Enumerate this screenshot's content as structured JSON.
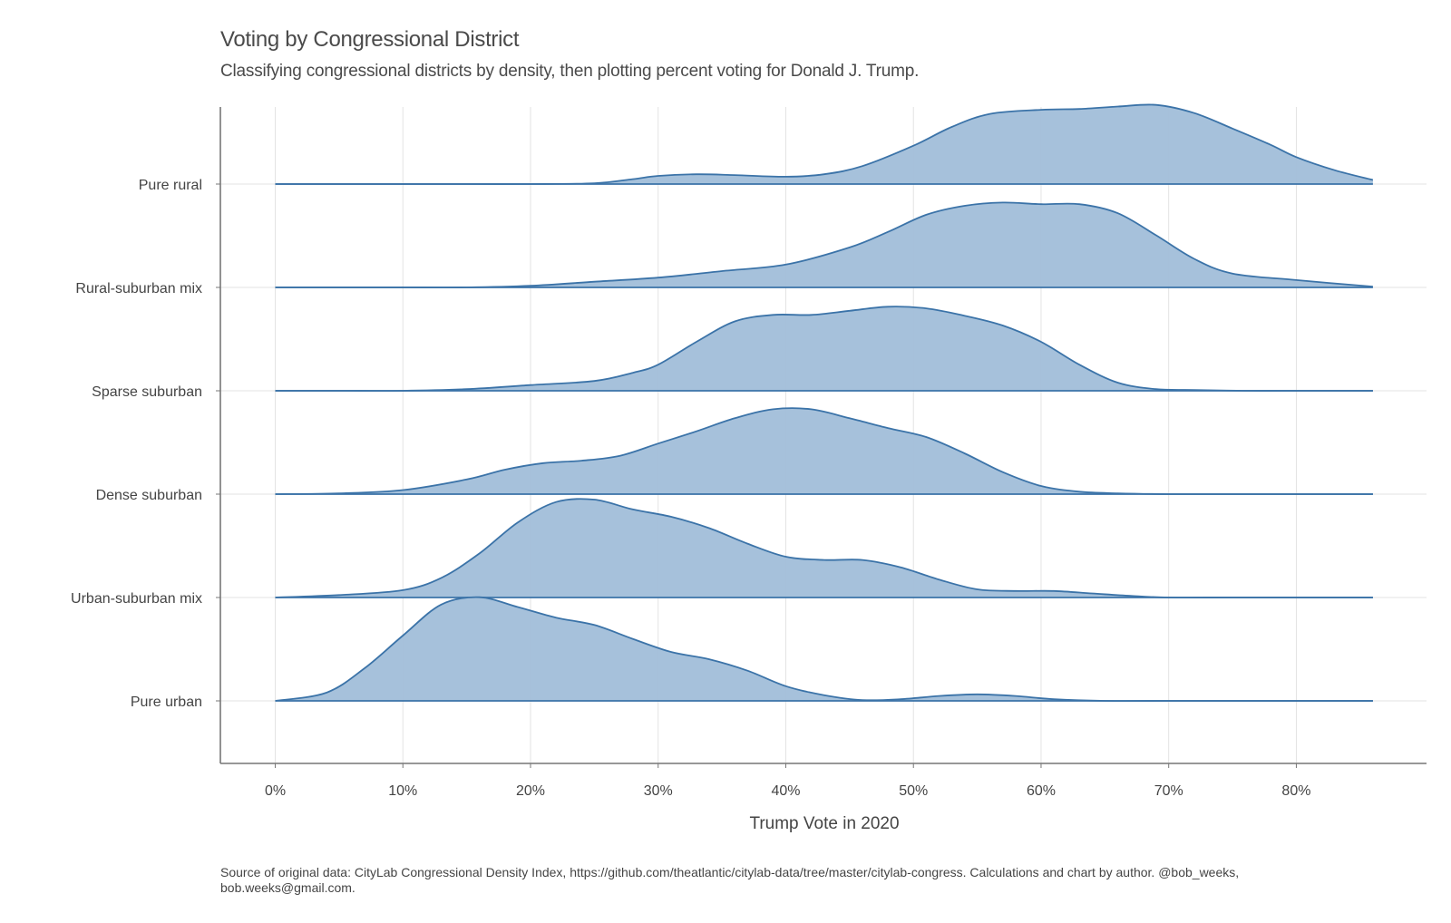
{
  "chart_data": {
    "type": "ridgeline",
    "title": "Voting by Congressional District",
    "subtitle": "Classifying congressional districts by density, then plotting percent voting for Donald J. Trump.",
    "xlabel": "Trump Vote in 2020",
    "ylabel": "",
    "xlim": [
      -4.3,
      90.2
    ],
    "x_ticks": [
      0,
      10,
      20,
      30,
      40,
      50,
      60,
      70,
      80
    ],
    "x_tick_labels": [
      "0%",
      "10%",
      "20%",
      "30%",
      "40%",
      "50%",
      "60%",
      "70%",
      "80%"
    ],
    "grid": true,
    "fill_color": "#a3bfda",
    "line_color": "#3b73a8",
    "categories": [
      "Pure rural",
      "Rural-suburban mix",
      "Sparse suburban",
      "Dense suburban",
      "Urban-suburban mix",
      "Pure urban"
    ],
    "series": [
      {
        "name": "Pure rural",
        "x": [
          0,
          5,
          10,
          15,
          20,
          25,
          28,
          30,
          33,
          36,
          40,
          43,
          46,
          50,
          53,
          56,
          60,
          63,
          66,
          69,
          72,
          75,
          78,
          80,
          83,
          86
        ],
        "density": [
          0,
          0,
          0,
          0,
          0,
          0.01,
          0.06,
          0.1,
          0.12,
          0.11,
          0.09,
          0.12,
          0.22,
          0.47,
          0.7,
          0.86,
          0.91,
          0.92,
          0.95,
          0.97,
          0.87,
          0.68,
          0.48,
          0.33,
          0.17,
          0.05
        ]
      },
      {
        "name": "Rural-suburban mix",
        "x": [
          0,
          5,
          10,
          15,
          20,
          25,
          30,
          35,
          40,
          45,
          48,
          51,
          54,
          57,
          60,
          63,
          66,
          69,
          72,
          75,
          80,
          86
        ],
        "density": [
          0,
          0,
          0,
          0,
          0.02,
          0.07,
          0.12,
          0.2,
          0.28,
          0.49,
          0.68,
          0.89,
          1.0,
          1.04,
          1.02,
          1.02,
          0.91,
          0.64,
          0.35,
          0.17,
          0.09,
          0.01
        ]
      },
      {
        "name": "Sparse suburban",
        "x": [
          0,
          5,
          10,
          15,
          20,
          25,
          28,
          30,
          33,
          36,
          39,
          42,
          45,
          48,
          51,
          54,
          57,
          60,
          63,
          66,
          69,
          72,
          76,
          80,
          86
        ],
        "density": [
          0,
          0,
          0,
          0.02,
          0.07,
          0.12,
          0.22,
          0.32,
          0.6,
          0.85,
          0.93,
          0.93,
          0.98,
          1.03,
          1.01,
          0.92,
          0.8,
          0.6,
          0.32,
          0.1,
          0.02,
          0.01,
          0,
          0,
          0
        ]
      },
      {
        "name": "Dense suburban",
        "x": [
          0,
          5,
          10,
          15,
          18,
          21,
          24,
          27,
          30,
          33,
          36,
          39,
          42,
          45,
          48,
          51,
          54,
          57,
          60,
          63,
          66,
          70,
          75,
          80,
          86
        ],
        "density": [
          0,
          0.01,
          0.05,
          0.18,
          0.3,
          0.38,
          0.41,
          0.47,
          0.62,
          0.77,
          0.93,
          1.04,
          1.04,
          0.93,
          0.81,
          0.7,
          0.5,
          0.27,
          0.1,
          0.03,
          0.01,
          0,
          0,
          0,
          0
        ]
      },
      {
        "name": "Urban-suburban mix",
        "x": [
          0,
          5,
          10,
          13,
          16,
          19,
          22,
          25,
          28,
          31,
          34,
          37,
          40,
          43,
          46,
          49,
          52,
          55,
          58,
          61,
          64,
          67,
          70,
          75,
          80,
          86
        ],
        "density": [
          0,
          0.03,
          0.09,
          0.24,
          0.54,
          0.92,
          1.17,
          1.2,
          1.08,
          0.99,
          0.85,
          0.66,
          0.5,
          0.46,
          0.46,
          0.37,
          0.22,
          0.1,
          0.08,
          0.08,
          0.05,
          0.02,
          0,
          0,
          0,
          0
        ]
      },
      {
        "name": "Pure urban",
        "x": [
          0,
          4,
          7,
          10,
          13,
          16,
          19,
          22,
          25,
          28,
          31,
          34,
          37,
          40,
          43,
          46,
          49,
          52,
          55,
          58,
          61,
          65,
          70,
          75,
          80,
          86
        ],
        "density": [
          0,
          0.1,
          0.4,
          0.8,
          1.18,
          1.27,
          1.15,
          1.02,
          0.93,
          0.76,
          0.6,
          0.51,
          0.37,
          0.18,
          0.07,
          0.01,
          0.02,
          0.06,
          0.08,
          0.06,
          0.02,
          0,
          0,
          0,
          0,
          0
        ]
      }
    ]
  },
  "caption": "Source of original data: CityLab Congressional Density Index, https://github.com/theatlantic/citylab-data/tree/master/citylab-congress. Calculations and chart by author. @bob_weeks, bob.weeks@gmail.com."
}
